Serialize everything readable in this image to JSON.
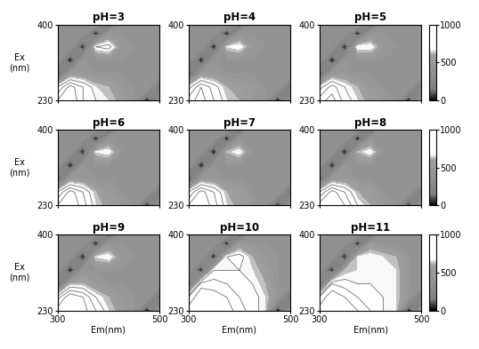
{
  "chart_data": [
    {
      "type": "contour",
      "title": "pH=3",
      "ylabel": "Ex\n(nm)",
      "tick_labels": "y",
      "xlim": [
        300,
        500
      ],
      "ylim": [
        230,
        400
      ],
      "xticks": [
        300,
        500
      ],
      "yticks": [
        230,
        400
      ],
      "em": [
        300,
        325,
        350,
        375,
        400,
        425,
        450,
        475,
        500
      ],
      "ex": [
        230,
        260,
        290,
        320,
        350,
        380,
        400
      ],
      "colorbar_range": [
        0,
        1000
      ],
      "intensity": [
        [
          900,
          1000,
          800,
          700,
          650,
          550,
          450,
          0,
          450
        ],
        [
          700,
          950,
          800,
          650,
          600,
          500,
          450,
          450,
          100
        ],
        [
          0,
          500,
          500,
          450,
          450,
          450,
          450,
          450,
          450
        ],
        [
          400,
          0,
          450,
          450,
          450,
          450,
          450,
          450,
          450
        ],
        [
          400,
          400,
          0,
          700,
          750,
          500,
          450,
          450,
          450
        ],
        [
          400,
          400,
          400,
          0,
          450,
          450,
          450,
          450,
          450
        ],
        [
          400,
          400,
          400,
          400,
          0,
          450,
          450,
          450,
          450
        ]
      ]
    },
    {
      "type": "contour",
      "title": "pH=4",
      "tick_labels": "y",
      "xlim": [
        300,
        500
      ],
      "ylim": [
        230,
        400
      ],
      "xticks": [
        300,
        500
      ],
      "yticks": [
        230,
        400
      ],
      "em": [
        300,
        325,
        350,
        375,
        400,
        425,
        450,
        475,
        500
      ],
      "ex": [
        230,
        260,
        290,
        320,
        350,
        380,
        400
      ],
      "colorbar_range": [
        0,
        1000
      ],
      "intensity": [
        [
          850,
          950,
          800,
          650,
          600,
          500,
          450,
          0,
          450
        ],
        [
          650,
          900,
          750,
          600,
          550,
          500,
          450,
          450,
          100
        ],
        [
          0,
          500,
          500,
          450,
          450,
          450,
          450,
          450,
          450
        ],
        [
          400,
          0,
          450,
          450,
          450,
          450,
          450,
          450,
          450
        ],
        [
          400,
          400,
          0,
          650,
          700,
          500,
          450,
          450,
          450
        ],
        [
          400,
          400,
          400,
          0,
          450,
          450,
          450,
          450,
          450
        ],
        [
          400,
          400,
          400,
          400,
          0,
          450,
          450,
          450,
          450
        ]
      ]
    },
    {
      "type": "contour",
      "title": "pH=5",
      "tick_labels": "y",
      "xlim": [
        300,
        500
      ],
      "ylim": [
        230,
        400
      ],
      "xticks": [
        300,
        500
      ],
      "yticks": [
        230,
        400
      ],
      "em": [
        300,
        325,
        350,
        375,
        400,
        425,
        450,
        475,
        500
      ],
      "ex": [
        230,
        260,
        290,
        320,
        350,
        380,
        400
      ],
      "colorbar_range": [
        0,
        1000
      ],
      "colorbar_ticks": [
        0,
        500,
        1000
      ],
      "intensity": [
        [
          850,
          950,
          750,
          650,
          550,
          500,
          450,
          0,
          450
        ],
        [
          650,
          850,
          700,
          600,
          500,
          450,
          450,
          450,
          100
        ],
        [
          0,
          500,
          500,
          450,
          450,
          450,
          450,
          450,
          450
        ],
        [
          400,
          0,
          450,
          450,
          450,
          450,
          450,
          450,
          450
        ],
        [
          400,
          400,
          0,
          700,
          700,
          500,
          450,
          450,
          450
        ],
        [
          400,
          400,
          400,
          0,
          450,
          450,
          450,
          450,
          450
        ],
        [
          400,
          400,
          400,
          400,
          0,
          450,
          450,
          450,
          450
        ]
      ]
    },
    {
      "type": "contour",
      "title": "pH=6",
      "ylabel": "Ex\n(nm)",
      "tick_labels": "y",
      "xlim": [
        300,
        500
      ],
      "ylim": [
        230,
        400
      ],
      "xticks": [
        300,
        500
      ],
      "yticks": [
        230,
        400
      ],
      "em": [
        300,
        325,
        350,
        375,
        400,
        425,
        450,
        475,
        500
      ],
      "ex": [
        230,
        260,
        290,
        320,
        350,
        380,
        400
      ],
      "colorbar_range": [
        0,
        1000
      ],
      "intensity": [
        [
          900,
          1000,
          850,
          650,
          550,
          500,
          450,
          0,
          450
        ],
        [
          700,
          950,
          800,
          600,
          500,
          450,
          450,
          450,
          100
        ],
        [
          0,
          500,
          500,
          450,
          450,
          450,
          450,
          450,
          450
        ],
        [
          400,
          0,
          450,
          450,
          450,
          450,
          450,
          450,
          450
        ],
        [
          400,
          400,
          0,
          650,
          700,
          450,
          450,
          450,
          450
        ],
        [
          400,
          400,
          400,
          0,
          450,
          450,
          450,
          450,
          450
        ],
        [
          400,
          400,
          400,
          400,
          0,
          450,
          450,
          450,
          450
        ]
      ]
    },
    {
      "type": "contour",
      "title": "pH=7",
      "tick_labels": "y",
      "xlim": [
        300,
        500
      ],
      "ylim": [
        230,
        400
      ],
      "xticks": [
        300,
        500
      ],
      "yticks": [
        230,
        400
      ],
      "em": [
        300,
        325,
        350,
        375,
        400,
        425,
        450,
        475,
        500
      ],
      "ex": [
        230,
        260,
        290,
        320,
        350,
        380,
        400
      ],
      "colorbar_range": [
        0,
        1000
      ],
      "intensity": [
        [
          900,
          1000,
          850,
          650,
          550,
          500,
          450,
          0,
          450
        ],
        [
          700,
          950,
          800,
          600,
          550,
          450,
          450,
          450,
          100
        ],
        [
          0,
          500,
          500,
          450,
          450,
          450,
          450,
          450,
          450
        ],
        [
          400,
          0,
          450,
          450,
          450,
          450,
          450,
          450,
          450
        ],
        [
          400,
          400,
          0,
          600,
          700,
          450,
          450,
          450,
          450
        ],
        [
          400,
          400,
          400,
          0,
          450,
          450,
          450,
          450,
          450
        ],
        [
          400,
          400,
          400,
          400,
          0,
          450,
          450,
          450,
          450
        ]
      ]
    },
    {
      "type": "contour",
      "title": "pH=8",
      "tick_labels": "y",
      "xlim": [
        300,
        500
      ],
      "ylim": [
        230,
        400
      ],
      "xticks": [
        300,
        500
      ],
      "yticks": [
        230,
        400
      ],
      "em": [
        300,
        325,
        350,
        375,
        400,
        425,
        450,
        475,
        500
      ],
      "ex": [
        230,
        260,
        290,
        320,
        350,
        380,
        400
      ],
      "colorbar_range": [
        0,
        1000
      ],
      "colorbar_ticks": [
        0,
        500,
        1000
      ],
      "intensity": [
        [
          950,
          1000,
          900,
          700,
          600,
          500,
          450,
          0,
          450
        ],
        [
          700,
          950,
          800,
          600,
          550,
          450,
          450,
          450,
          100
        ],
        [
          0,
          500,
          500,
          450,
          450,
          450,
          450,
          450,
          450
        ],
        [
          400,
          0,
          450,
          450,
          450,
          450,
          450,
          450,
          450
        ],
        [
          400,
          400,
          0,
          600,
          700,
          450,
          450,
          450,
          450
        ],
        [
          400,
          400,
          400,
          0,
          450,
          450,
          450,
          450,
          450
        ],
        [
          400,
          400,
          400,
          400,
          0,
          450,
          450,
          450,
          450
        ]
      ]
    },
    {
      "type": "contour",
      "title": "pH=9",
      "ylabel": "Ex\n(nm)",
      "xlabel": "Em(nm)",
      "xlim": [
        300,
        500
      ],
      "ylim": [
        230,
        400
      ],
      "xticks": [
        300,
        500
      ],
      "yticks": [
        230,
        400
      ],
      "em": [
        300,
        325,
        350,
        375,
        400,
        425,
        450,
        475,
        500
      ],
      "ex": [
        230,
        260,
        290,
        320,
        350,
        380,
        400
      ],
      "colorbar_range": [
        0,
        1000
      ],
      "intensity": [
        [
          950,
          1000,
          950,
          800,
          650,
          550,
          450,
          0,
          450
        ],
        [
          750,
          1000,
          900,
          700,
          600,
          500,
          450,
          450,
          100
        ],
        [
          0,
          600,
          600,
          500,
          450,
          450,
          450,
          450,
          450
        ],
        [
          400,
          0,
          450,
          450,
          450,
          450,
          450,
          450,
          450
        ],
        [
          400,
          400,
          0,
          650,
          700,
          500,
          450,
          450,
          450
        ],
        [
          400,
          400,
          400,
          0,
          450,
          450,
          450,
          450,
          450
        ],
        [
          400,
          400,
          400,
          400,
          0,
          450,
          450,
          450,
          450
        ]
      ]
    },
    {
      "type": "contour",
      "title": "pH=10",
      "xlabel": "Em(nm)",
      "xlim": [
        300,
        500
      ],
      "ylim": [
        230,
        400
      ],
      "xticks": [
        300,
        500
      ],
      "yticks": [
        230,
        400
      ],
      "em": [
        300,
        325,
        350,
        375,
        400,
        425,
        450,
        475,
        500
      ],
      "ex": [
        230,
        260,
        290,
        320,
        350,
        380,
        400
      ],
      "colorbar_range": [
        0,
        1000
      ],
      "intensity": [
        [
          950,
          1000,
          1000,
          950,
          850,
          750,
          650,
          0,
          450
        ],
        [
          800,
          1000,
          950,
          900,
          800,
          750,
          650,
          450,
          100
        ],
        [
          0,
          850,
          850,
          800,
          750,
          700,
          600,
          450,
          450
        ],
        [
          400,
          0,
          700,
          700,
          700,
          650,
          550,
          450,
          450
        ],
        [
          400,
          400,
          0,
          700,
          750,
          600,
          500,
          450,
          450
        ],
        [
          400,
          400,
          400,
          0,
          500,
          450,
          450,
          450,
          450
        ],
        [
          400,
          400,
          400,
          400,
          0,
          450,
          450,
          450,
          450
        ]
      ]
    },
    {
      "type": "contour",
      "title": "pH=11",
      "xlabel": "Em(nm)",
      "xlim": [
        300,
        500
      ],
      "ylim": [
        230,
        400
      ],
      "xticks": [
        300,
        500
      ],
      "yticks": [
        230,
        400
      ],
      "em": [
        300,
        325,
        350,
        375,
        400,
        425,
        450,
        475,
        500
      ],
      "ex": [
        230,
        260,
        290,
        320,
        350,
        380,
        400
      ],
      "colorbar_range": [
        0,
        1000
      ],
      "colorbar_ticks": [
        0,
        500,
        1000
      ],
      "intensity": [
        [
          950,
          1000,
          1000,
          900,
          800,
          700,
          650,
          0,
          450
        ],
        [
          800,
          1000,
          900,
          800,
          750,
          700,
          650,
          450,
          100
        ],
        [
          0,
          800,
          750,
          700,
          700,
          700,
          650,
          450,
          450
        ],
        [
          400,
          0,
          600,
          650,
          700,
          700,
          650,
          450,
          450
        ],
        [
          400,
          400,
          0,
          650,
          700,
          650,
          600,
          450,
          450
        ],
        [
          400,
          400,
          400,
          0,
          500,
          450,
          450,
          450,
          450
        ],
        [
          400,
          400,
          400,
          400,
          0,
          450,
          450,
          450,
          450
        ]
      ]
    }
  ]
}
